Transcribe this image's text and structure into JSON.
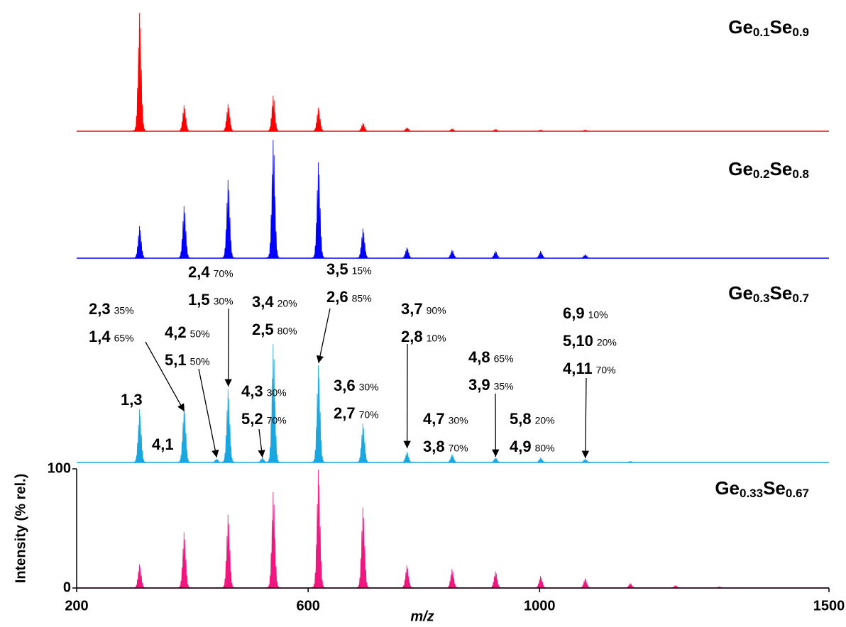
{
  "chart_data": {
    "type": "spectrum",
    "xlabel": "m/z",
    "ylabel": "Intensity (% rel.)",
    "xlim": [
      200,
      1500
    ],
    "xticks": [
      200,
      600,
      1000,
      1500
    ],
    "ylim": [
      0,
      100
    ],
    "yticks": [
      0,
      100
    ],
    "series": [
      {
        "name": "Ge0.1Se0.9",
        "color": "#ff0000",
        "x": [
          309,
          386,
          462,
          540,
          618,
          695,
          771,
          849,
          924,
          1002,
          1079
        ],
        "values": [
          100,
          22,
          23,
          30,
          20,
          7,
          3,
          2,
          1.5,
          1,
          1
        ]
      },
      {
        "name": "Ge0.2Se0.8",
        "color": "#0000ff",
        "x": [
          309,
          386,
          462,
          540,
          618,
          695,
          771,
          849,
          924,
          1002,
          1079
        ],
        "values": [
          27,
          44,
          66,
          100,
          81,
          25,
          9,
          7,
          6,
          6,
          3
        ]
      },
      {
        "name": "Ge0.3Se0.7",
        "color": "#1aa7e0",
        "x": [
          309,
          386,
          442,
          462,
          521,
          540,
          618,
          695,
          771,
          849,
          924,
          1002,
          1079,
          1157
        ],
        "values": [
          45,
          48,
          3,
          62,
          4,
          100,
          82,
          33,
          9,
          7,
          4,
          4,
          3,
          1
        ]
      },
      {
        "name": "Ge0.33Se0.67",
        "color": "#f0167f",
        "x": [
          309,
          386,
          462,
          540,
          618,
          695,
          771,
          849,
          924,
          1002,
          1079,
          1157,
          1235,
          1311
        ],
        "values": [
          20,
          47,
          62,
          81,
          100,
          68,
          19,
          16,
          14,
          10,
          8,
          4,
          2,
          1
        ]
      }
    ],
    "annotations": [
      {
        "lines": [
          {
            "text": "1,3"
          }
        ]
      },
      {
        "lines": [
          {
            "text": "2,3",
            "pct": "35%"
          },
          {
            "text": "1,4",
            "pct": "65%"
          }
        ],
        "arrow_to": 386
      },
      {
        "lines": [
          {
            "text": "4,1"
          }
        ]
      },
      {
        "lines": [
          {
            "text": "2,4",
            "pct": "70%"
          },
          {
            "text": "1,5",
            "pct": "30%"
          }
        ],
        "arrow_to": 462
      },
      {
        "lines": [
          {
            "text": "4,2",
            "pct": "50%"
          },
          {
            "text": "5,1",
            "pct": "50%"
          }
        ],
        "arrow_to": 442
      },
      {
        "lines": [
          {
            "text": "3,4",
            "pct": "20%"
          },
          {
            "text": "2,5",
            "pct": "80%"
          }
        ]
      },
      {
        "lines": [
          {
            "text": "3,5",
            "pct": "15%"
          },
          {
            "text": "2,6",
            "pct": "85%"
          }
        ],
        "arrow_to": 618
      },
      {
        "lines": [
          {
            "text": "4,3",
            "pct": "30%"
          },
          {
            "text": "5,2",
            "pct": "70%"
          }
        ],
        "arrow_to": 521
      },
      {
        "lines": [
          {
            "text": "3,6",
            "pct": "30%"
          },
          {
            "text": "2,7",
            "pct": "70%"
          }
        ]
      },
      {
        "lines": [
          {
            "text": "3,7",
            "pct": "90%"
          },
          {
            "text": "2,8",
            "pct": "10%"
          }
        ],
        "arrow_to": 771
      },
      {
        "lines": [
          {
            "text": "4,7",
            "pct": "30%"
          },
          {
            "text": "3,8",
            "pct": "70%"
          }
        ]
      },
      {
        "lines": [
          {
            "text": "4,8",
            "pct": "65%"
          },
          {
            "text": "3,9",
            "pct": "35%"
          }
        ],
        "arrow_to": 924
      },
      {
        "lines": [
          {
            "text": "5,8",
            "pct": "20%"
          },
          {
            "text": "4,9",
            "pct": "80%"
          }
        ]
      },
      {
        "lines": [
          {
            "text": "6,9",
            "pct": "10%"
          },
          {
            "text": "5,10",
            "pct": "20%"
          },
          {
            "text": "4,11",
            "pct": "70%"
          }
        ],
        "arrow_to": 1079
      }
    ]
  }
}
